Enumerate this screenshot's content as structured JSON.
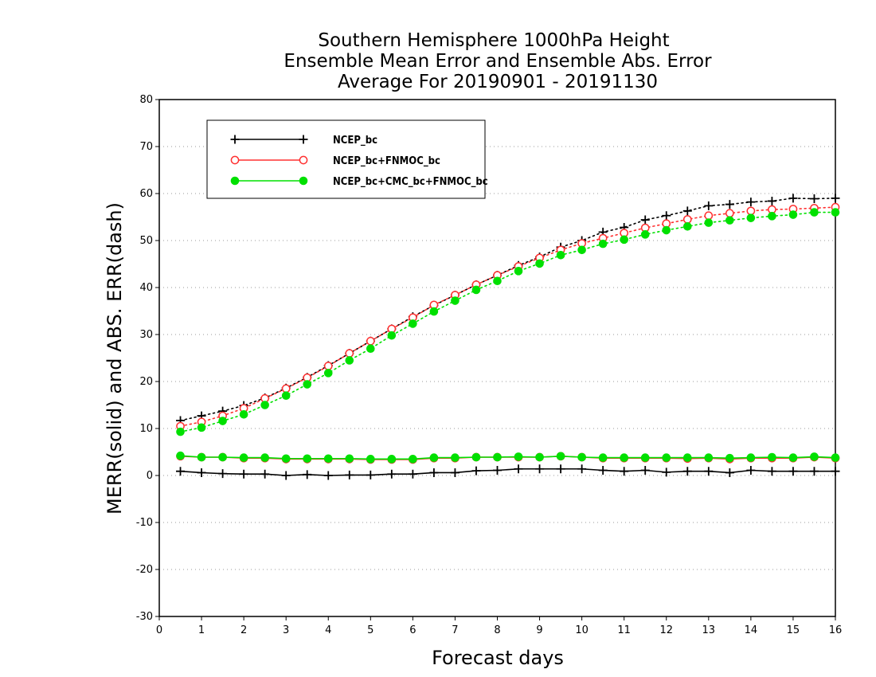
{
  "chart_data": {
    "type": "line",
    "title_lines": [
      "Southern Hemisphere 1000hPa Height",
      "Ensemble Mean Error and Ensemble Abs. Error",
      "Average For 20190901 - 20191130"
    ],
    "xlabel": "Forecast days",
    "ylabel": "MERR(solid) and ABS. ERR(dash)",
    "xlim": [
      0,
      16
    ],
    "ylim": [
      -30,
      80
    ],
    "xticks": [
      0,
      1,
      2,
      3,
      4,
      5,
      6,
      7,
      8,
      9,
      10,
      11,
      12,
      13,
      14,
      15,
      16
    ],
    "yticks": [
      -30,
      -20,
      -10,
      0,
      10,
      20,
      30,
      40,
      50,
      60,
      70,
      80
    ],
    "grid": "horizontal dotted",
    "legend_position": "top-left",
    "x": [
      0.5,
      1,
      1.5,
      2,
      2.5,
      3,
      3.5,
      4,
      4.5,
      5,
      5.5,
      6,
      6.5,
      7,
      7.5,
      8,
      8.5,
      9,
      9.5,
      10,
      10.5,
      11,
      11.5,
      12,
      12.5,
      13,
      13.5,
      14,
      14.5,
      15,
      15.5,
      16
    ],
    "series": [
      {
        "name": "NCEP_bc",
        "color": "#000000",
        "marker": "plus",
        "merr": [
          0.9,
          0.6,
          0.4,
          0.3,
          0.3,
          0.0,
          0.2,
          0.0,
          0.1,
          0.1,
          0.3,
          0.3,
          0.6,
          0.6,
          1.0,
          1.1,
          1.4,
          1.4,
          1.4,
          1.4,
          1.1,
          0.9,
          1.1,
          0.7,
          0.9,
          0.9,
          0.6,
          1.1,
          0.9,
          0.9,
          0.9,
          0.9
        ],
        "abs_err": [
          11.7,
          12.7,
          13.7,
          14.9,
          16.5,
          18.6,
          20.9,
          23.4,
          26.0,
          28.6,
          31.2,
          33.8,
          36.2,
          38.4,
          40.6,
          42.6,
          44.7,
          46.5,
          48.6,
          50.0,
          51.8,
          52.8,
          54.4,
          55.3,
          56.3,
          57.4,
          57.7,
          58.2,
          58.4,
          59.0,
          58.9,
          59.0
        ]
      },
      {
        "name": "NCEP_bc+FNMOC_bc",
        "color": "#ff3030",
        "marker": "open-circle",
        "merr": [
          4.1,
          3.9,
          3.9,
          3.7,
          3.7,
          3.5,
          3.5,
          3.5,
          3.5,
          3.4,
          3.4,
          3.4,
          3.7,
          3.7,
          3.9,
          3.9,
          3.9,
          3.9,
          4.1,
          3.9,
          3.7,
          3.7,
          3.7,
          3.7,
          3.6,
          3.7,
          3.5,
          3.7,
          3.7,
          3.7,
          3.9,
          3.7
        ],
        "abs_err": [
          10.5,
          11.4,
          12.7,
          14.3,
          16.4,
          18.5,
          20.8,
          23.3,
          26.0,
          28.6,
          31.2,
          33.6,
          36.3,
          38.4,
          40.6,
          42.6,
          44.5,
          46.3,
          48.0,
          49.4,
          50.5,
          51.6,
          52.7,
          53.6,
          54.5,
          55.3,
          55.8,
          56.3,
          56.6,
          56.7,
          56.9,
          57.1
        ]
      },
      {
        "name": "NCEP_bc+CMC_bc+FNMOC_bc",
        "color": "#00e000",
        "marker": "filled-circle",
        "merr": [
          4.2,
          3.9,
          3.9,
          3.8,
          3.8,
          3.6,
          3.6,
          3.6,
          3.6,
          3.5,
          3.5,
          3.5,
          3.8,
          3.8,
          3.9,
          3.9,
          4.0,
          3.9,
          4.1,
          3.9,
          3.8,
          3.8,
          3.8,
          3.8,
          3.8,
          3.8,
          3.7,
          3.8,
          3.9,
          3.8,
          4.0,
          3.8
        ],
        "abs_err": [
          9.3,
          10.2,
          11.6,
          13.0,
          15.0,
          17.0,
          19.4,
          21.8,
          24.5,
          27.0,
          29.8,
          32.3,
          34.9,
          37.2,
          39.5,
          41.4,
          43.5,
          45.1,
          46.9,
          48.0,
          49.3,
          50.2,
          51.3,
          52.2,
          53.0,
          53.8,
          54.3,
          54.8,
          55.2,
          55.5,
          56.0,
          56.0
        ]
      }
    ]
  }
}
